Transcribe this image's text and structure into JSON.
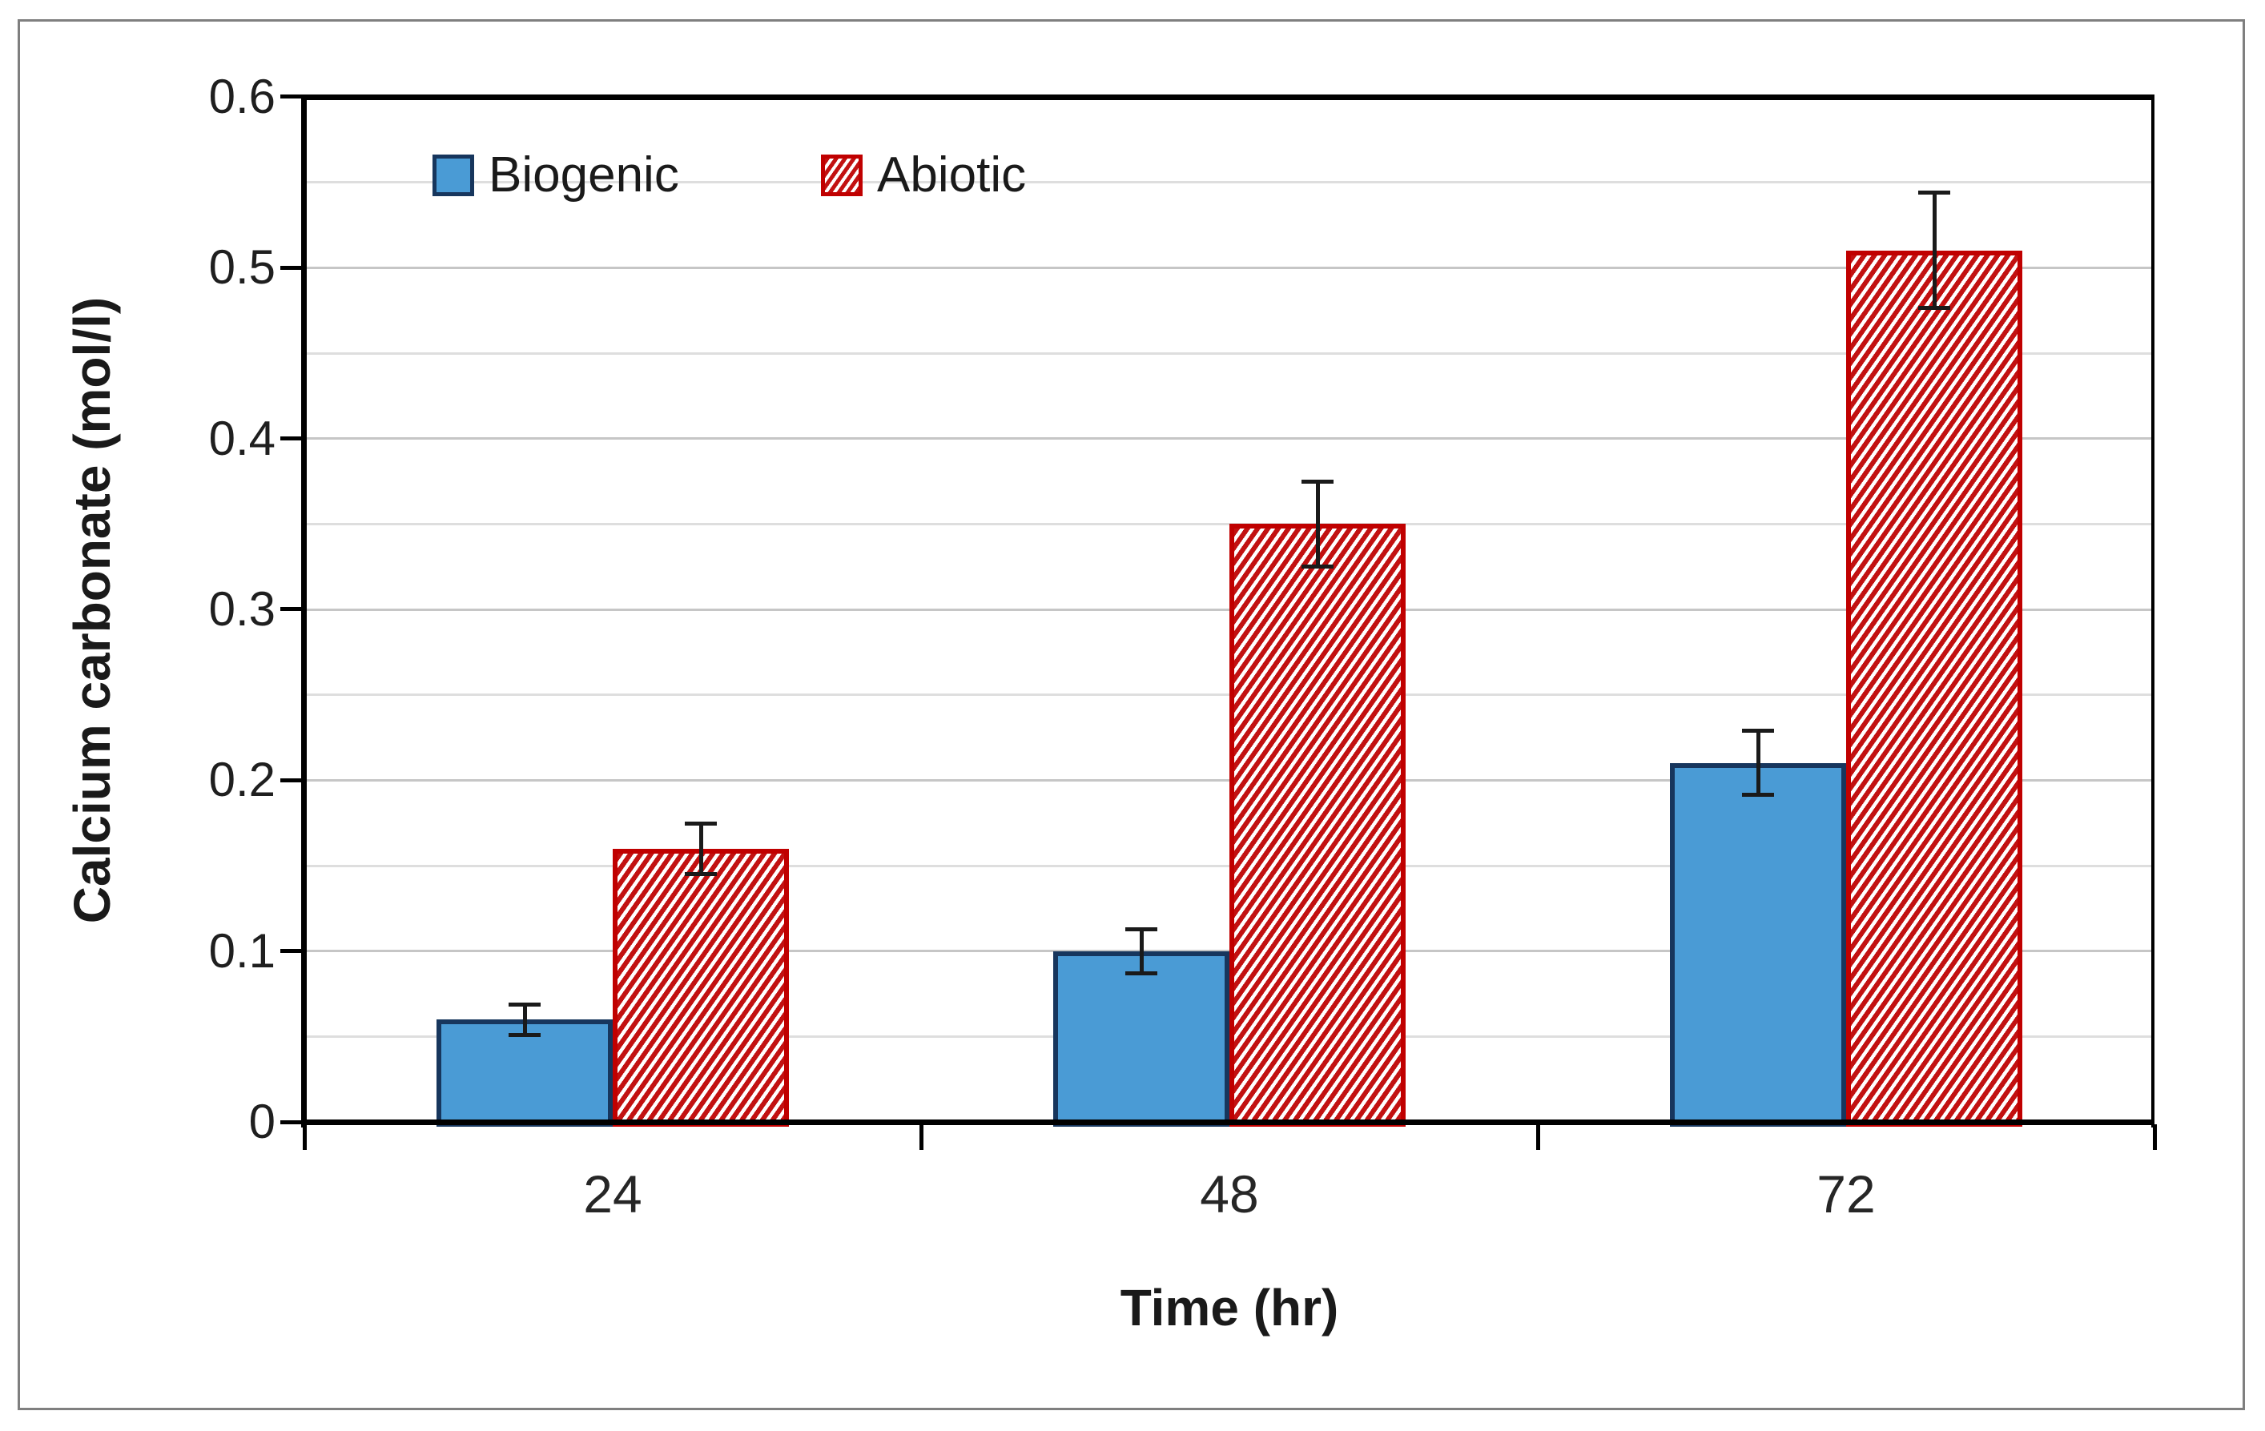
{
  "figure": {
    "background": "#ffffff",
    "frame_border_color": "#7f7f7f"
  },
  "chart_data": {
    "type": "bar",
    "title": "",
    "xlabel": "Time (hr)",
    "ylabel": "Calcium carbonate (mol/l)",
    "categories": [
      "24",
      "48",
      "72"
    ],
    "series": [
      {
        "name": "Biogenic",
        "values": [
          0.06,
          0.1,
          0.21
        ],
        "errors": [
          0.01,
          0.014,
          0.02
        ],
        "fill": "#4a9bd5",
        "border": "#17365d",
        "pattern": "solid"
      },
      {
        "name": "Abiotic",
        "values": [
          0.16,
          0.35,
          0.51
        ],
        "errors": [
          0.016,
          0.026,
          0.035
        ],
        "fill": "#c21111",
        "border": "#c00000",
        "pattern": "diagonal-stripes"
      }
    ],
    "ylim": [
      0,
      0.6
    ],
    "ytick_labels": [
      "0",
      "0.1",
      "0.2",
      "0.3",
      "0.4",
      "0.5",
      "0.6"
    ],
    "ytick_step": 0.1,
    "minor_grid_step": 0.05,
    "grid": "horizontal",
    "error_bars": true,
    "legend_position": "top-left-inside",
    "style": {
      "major_grid_color": "#c6c6c6",
      "minor_grid_color": "#dedede",
      "axis_color": "#000000",
      "error_bar_color": "#1a1a1a",
      "text_color": "#1f1f1f"
    }
  }
}
